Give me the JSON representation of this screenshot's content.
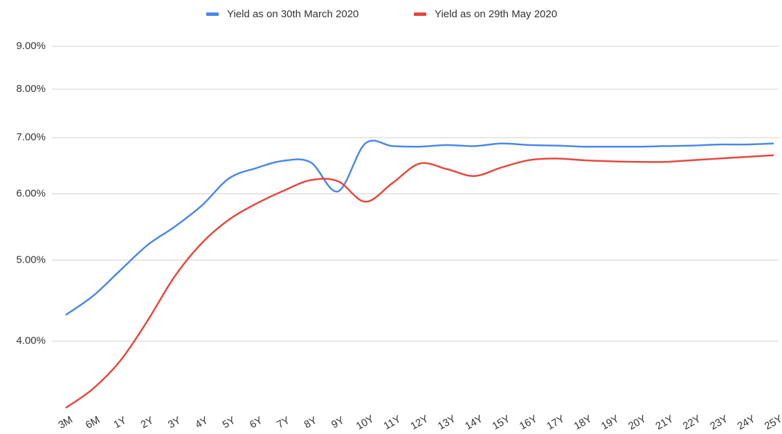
{
  "chart_data": {
    "type": "line",
    "categories": [
      "3M",
      "6M",
      "1Y",
      "2Y",
      "3Y",
      "4Y",
      "5Y",
      "6Y",
      "7Y",
      "8Y",
      "9Y",
      "10Y",
      "11Y",
      "12Y",
      "13Y",
      "14Y",
      "15Y",
      "16Y",
      "17Y",
      "18Y",
      "19Y",
      "20Y",
      "21Y",
      "22Y",
      "23Y",
      "24Y",
      "25Y"
    ],
    "series": [
      {
        "name": "Yield as on 30th March 2020",
        "color": "#4a86e8",
        "values": [
          4.3,
          4.53,
          4.86,
          5.21,
          5.48,
          5.81,
          6.26,
          6.44,
          6.57,
          6.54,
          6.04,
          6.89,
          6.84,
          6.83,
          6.86,
          6.84,
          6.89,
          6.86,
          6.85,
          6.83,
          6.83,
          6.83,
          6.84,
          6.85,
          6.87,
          6.87,
          6.89
        ]
      },
      {
        "name": "Yield as on 29th May 2020",
        "color": "#e8453c",
        "values": [
          3.33,
          3.51,
          3.79,
          4.23,
          4.78,
          5.24,
          5.59,
          5.84,
          6.05,
          6.23,
          6.21,
          5.87,
          6.18,
          6.52,
          6.42,
          6.3,
          6.45,
          6.58,
          6.61,
          6.58,
          6.56,
          6.55,
          6.55,
          6.58,
          6.61,
          6.64,
          6.67
        ]
      }
    ],
    "ylim": [
      3.3,
      9
    ],
    "yticks": [
      {
        "value": 4,
        "label": "4.00%"
      },
      {
        "value": 5,
        "label": "5.00%"
      },
      {
        "value": 6,
        "label": "6.00%"
      },
      {
        "value": 7,
        "label": "7.00%"
      },
      {
        "value": 8,
        "label": "8.00%"
      },
      {
        "value": 9,
        "label": "9.00%"
      }
    ],
    "log_scale": true,
    "grid": true,
    "legend": "top"
  }
}
